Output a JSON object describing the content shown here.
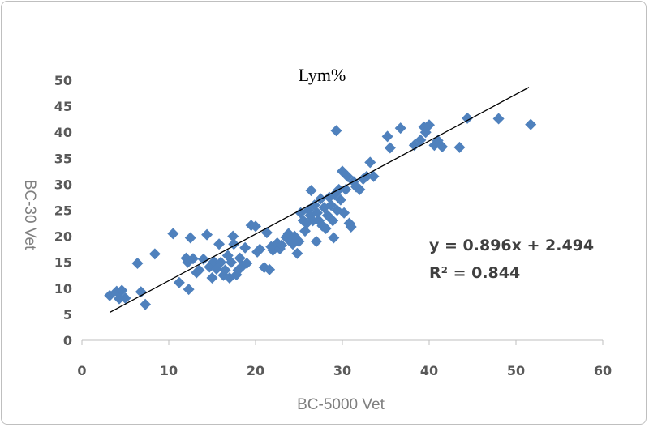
{
  "chart_data": {
    "type": "scatter",
    "title": "Lym%",
    "xlabel": "BC-5000 Vet",
    "ylabel": "BC-30 Vet",
    "xlim": [
      0,
      60
    ],
    "ylim": [
      0,
      50
    ],
    "xticks": [
      0,
      10,
      20,
      30,
      40,
      50,
      60
    ],
    "yticks": [
      0,
      5,
      10,
      15,
      20,
      25,
      30,
      35,
      40,
      45,
      50
    ],
    "grid": false,
    "marker_color": "#4f81bd",
    "trendline": {
      "slope": 0.896,
      "intercept": 2.494,
      "x_range": [
        3.2,
        51.5
      ],
      "color": "#000000",
      "equation_text": "y = 0.896x + 2.494",
      "r2_text": "R² = 0.844"
    },
    "points": [
      [
        3.2,
        8.6
      ],
      [
        4.0,
        9.4
      ],
      [
        4.3,
        8.0
      ],
      [
        4.6,
        9.6
      ],
      [
        5.0,
        8.1
      ],
      [
        6.4,
        14.8
      ],
      [
        6.8,
        9.3
      ],
      [
        7.3,
        6.9
      ],
      [
        8.4,
        16.6
      ],
      [
        10.5,
        20.5
      ],
      [
        11.2,
        11.1
      ],
      [
        12.0,
        15.8
      ],
      [
        12.2,
        15.0
      ],
      [
        12.3,
        9.8
      ],
      [
        12.5,
        19.7
      ],
      [
        12.8,
        15.7
      ],
      [
        13.2,
        13.0
      ],
      [
        13.5,
        13.5
      ],
      [
        14.0,
        15.6
      ],
      [
        14.4,
        20.3
      ],
      [
        14.7,
        14.1
      ],
      [
        15.0,
        12.0
      ],
      [
        15.2,
        15.1
      ],
      [
        15.5,
        13.7
      ],
      [
        15.8,
        18.5
      ],
      [
        16.0,
        15.0
      ],
      [
        16.3,
        12.5
      ],
      [
        16.5,
        13.5
      ],
      [
        16.8,
        16.3
      ],
      [
        17.0,
        12.0
      ],
      [
        17.2,
        15.0
      ],
      [
        17.4,
        20.0
      ],
      [
        17.5,
        18.5
      ],
      [
        17.8,
        12.6
      ],
      [
        18.0,
        13.5
      ],
      [
        18.2,
        15.8
      ],
      [
        18.5,
        14.3
      ],
      [
        18.8,
        17.8
      ],
      [
        19.0,
        14.8
      ],
      [
        19.5,
        22.1
      ],
      [
        20.0,
        21.9
      ],
      [
        20.2,
        17.0
      ],
      [
        20.5,
        17.5
      ],
      [
        21.0,
        14.0
      ],
      [
        21.3,
        20.7
      ],
      [
        21.6,
        13.6
      ],
      [
        21.8,
        18.0
      ],
      [
        22.0,
        17.3
      ],
      [
        22.5,
        18.7
      ],
      [
        22.8,
        17.6
      ],
      [
        23.0,
        18.3
      ],
      [
        23.5,
        19.8
      ],
      [
        23.8,
        20.5
      ],
      [
        24.0,
        19.0
      ],
      [
        24.3,
        18.5
      ],
      [
        24.5,
        20.0
      ],
      [
        24.8,
        16.7
      ],
      [
        25.0,
        19.0
      ],
      [
        25.2,
        24.5
      ],
      [
        25.5,
        23.0
      ],
      [
        25.7,
        21.0
      ],
      [
        25.9,
        22.5
      ],
      [
        26.1,
        25.0
      ],
      [
        26.3,
        24.0
      ],
      [
        26.4,
        28.8
      ],
      [
        26.6,
        23.0
      ],
      [
        26.8,
        26.0
      ],
      [
        27.0,
        19.0
      ],
      [
        27.1,
        24.5
      ],
      [
        27.3,
        23.0
      ],
      [
        27.5,
        27.2
      ],
      [
        27.7,
        22.0
      ],
      [
        27.9,
        25.5
      ],
      [
        28.1,
        21.5
      ],
      [
        28.3,
        24.0
      ],
      [
        28.5,
        27.5
      ],
      [
        28.7,
        26.0
      ],
      [
        28.9,
        23.0
      ],
      [
        29.0,
        19.7
      ],
      [
        29.1,
        28.0
      ],
      [
        29.3,
        40.3
      ],
      [
        29.4,
        25.0
      ],
      [
        29.6,
        29.0
      ],
      [
        29.8,
        27.0
      ],
      [
        30.0,
        32.5
      ],
      [
        30.2,
        24.5
      ],
      [
        30.4,
        29.0
      ],
      [
        30.6,
        31.5
      ],
      [
        30.8,
        22.5
      ],
      [
        31.0,
        21.8
      ],
      [
        31.3,
        30.5
      ],
      [
        31.6,
        29.5
      ],
      [
        32.0,
        29.0
      ],
      [
        32.4,
        31.0
      ],
      [
        32.8,
        31.5
      ],
      [
        33.2,
        34.2
      ],
      [
        33.6,
        31.5
      ],
      [
        35.2,
        39.2
      ],
      [
        35.5,
        37.0
      ],
      [
        36.7,
        40.8
      ],
      [
        38.3,
        37.5
      ],
      [
        39.0,
        38.5
      ],
      [
        39.4,
        41.0
      ],
      [
        39.6,
        40.0
      ],
      [
        40.0,
        41.4
      ],
      [
        40.6,
        37.5
      ],
      [
        41.0,
        38.4
      ],
      [
        41.5,
        37.2
      ],
      [
        43.5,
        37.1
      ],
      [
        44.4,
        42.7
      ],
      [
        48.0,
        42.6
      ],
      [
        51.7,
        41.5
      ]
    ]
  }
}
